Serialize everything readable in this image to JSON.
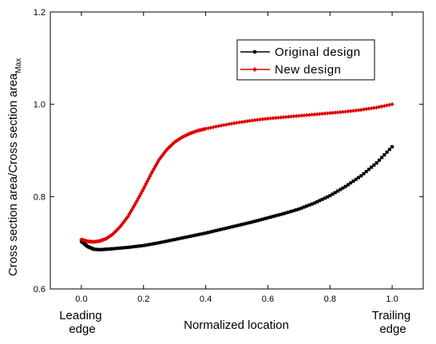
{
  "chart_data": {
    "type": "line",
    "xlabel": "Normalized location",
    "ylabel_main": "Cross section area/Cross section area",
    "ylabel_sub": "Max",
    "xlim": [
      -0.1,
      1.1
    ],
    "ylim": [
      0.6,
      1.2
    ],
    "x_ticks": [
      "0.0",
      "0.2",
      "0.4",
      "0.6",
      "0.8",
      "1.0"
    ],
    "y_ticks": [
      "0.6",
      "0.8",
      "1.0",
      "1.2"
    ],
    "x_end_labels": {
      "left": [
        "Leading",
        "edge"
      ],
      "right": [
        "Trailing",
        "edge"
      ]
    },
    "legend_position": "top-right",
    "series": [
      {
        "name": "Original design",
        "color": "#000000",
        "marker": "square",
        "x": [
          0.0,
          0.02,
          0.04,
          0.06,
          0.08,
          0.1,
          0.15,
          0.2,
          0.25,
          0.3,
          0.35,
          0.4,
          0.45,
          0.5,
          0.55,
          0.6,
          0.65,
          0.7,
          0.75,
          0.8,
          0.85,
          0.9,
          0.95,
          1.0
        ],
        "y": [
          0.703,
          0.692,
          0.686,
          0.685,
          0.686,
          0.687,
          0.69,
          0.694,
          0.7,
          0.707,
          0.714,
          0.721,
          0.729,
          0.737,
          0.745,
          0.754,
          0.763,
          0.773,
          0.786,
          0.802,
          0.822,
          0.845,
          0.873,
          0.908
        ]
      },
      {
        "name": "New design",
        "color": "#e00000",
        "marker": "diamond",
        "x": [
          0.0,
          0.02,
          0.04,
          0.06,
          0.08,
          0.1,
          0.125,
          0.15,
          0.175,
          0.2,
          0.225,
          0.25,
          0.275,
          0.3,
          0.325,
          0.35,
          0.375,
          0.4,
          0.45,
          0.5,
          0.55,
          0.6,
          0.65,
          0.7,
          0.75,
          0.8,
          0.85,
          0.9,
          0.95,
          1.0
        ],
        "y": [
          0.707,
          0.703,
          0.702,
          0.704,
          0.709,
          0.718,
          0.735,
          0.757,
          0.786,
          0.817,
          0.85,
          0.88,
          0.902,
          0.918,
          0.929,
          0.937,
          0.943,
          0.947,
          0.954,
          0.96,
          0.965,
          0.969,
          0.972,
          0.975,
          0.978,
          0.981,
          0.984,
          0.988,
          0.993,
          1.0
        ]
      }
    ]
  }
}
